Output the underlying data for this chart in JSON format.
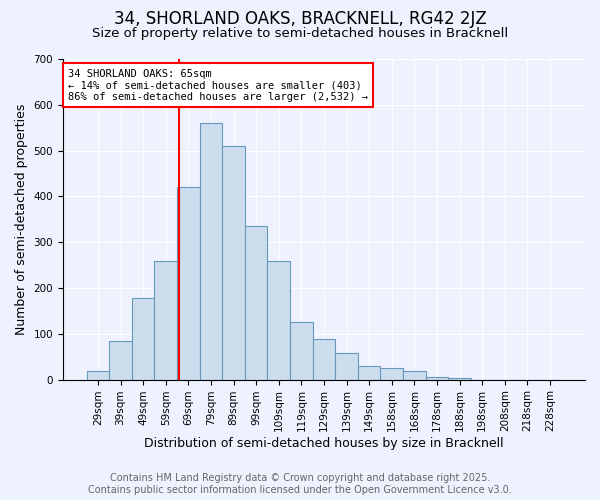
{
  "title": "34, SHORLAND OAKS, BRACKNELL, RG42 2JZ",
  "subtitle": "Size of property relative to semi-detached houses in Bracknell",
  "xlabel": "Distribution of semi-detached houses by size in Bracknell",
  "ylabel": "Number of semi-detached properties",
  "bin_labels": [
    "29sqm",
    "39sqm",
    "49sqm",
    "59sqm",
    "69sqm",
    "79sqm",
    "89sqm",
    "99sqm",
    "109sqm",
    "119sqm",
    "129sqm",
    "139sqm",
    "149sqm",
    "158sqm",
    "168sqm",
    "178sqm",
    "188sqm",
    "198sqm",
    "208sqm",
    "218sqm",
    "228sqm"
  ],
  "bin_values": [
    18,
    85,
    178,
    258,
    420,
    560,
    510,
    335,
    258,
    125,
    88,
    58,
    30,
    25,
    18,
    5,
    4,
    0,
    0,
    0,
    0
  ],
  "bar_color": "#ccdded",
  "bar_edge_color": "#6699bb",
  "vline_color": "red",
  "vline_x": 3.6,
  "annotation_text": "34 SHORLAND OAKS: 65sqm\n← 14% of semi-detached houses are smaller (403)\n86% of semi-detached houses are larger (2,532) →",
  "annotation_box_color": "#ffffff",
  "annotation_box_edge_color": "red",
  "ylim": [
    0,
    700
  ],
  "yticks": [
    0,
    100,
    200,
    300,
    400,
    500,
    600,
    700
  ],
  "background_color": "#eef2ff",
  "footer_line1": "Contains HM Land Registry data © Crown copyright and database right 2025.",
  "footer_line2": "Contains public sector information licensed under the Open Government Licence v3.0.",
  "title_fontsize": 12,
  "subtitle_fontsize": 9.5,
  "axis_label_fontsize": 9,
  "tick_fontsize": 7.5,
  "footer_fontsize": 7,
  "annotation_fontsize": 7.5
}
